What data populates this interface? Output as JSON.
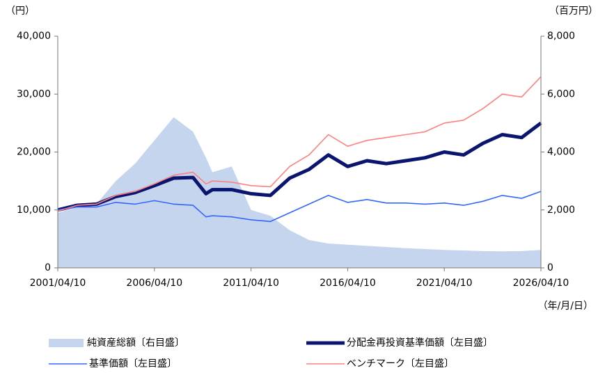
{
  "chart_data": {
    "type": "line",
    "y_unit": "（円）",
    "y2_unit": "（百万円）",
    "x_unit": "（年/月/日）",
    "x": [
      "2001/04/10",
      "2002/04/10",
      "2003/04/10",
      "2004/04/10",
      "2005/04/10",
      "2006/04/10",
      "2007/04/10",
      "2008/04/10",
      "2008/12/10",
      "2009/04/10",
      "2010/04/10",
      "2011/04/10",
      "2012/04/10",
      "2013/04/10",
      "2014/04/10",
      "2015/04/10",
      "2016/04/10",
      "2017/04/10",
      "2018/04/10",
      "2019/04/10",
      "2020/04/10",
      "2021/04/10",
      "2022/04/10",
      "2023/04/10",
      "2024/04/10",
      "2025/04/10",
      "2026/04/10"
    ],
    "series": [
      {
        "name": "純資産総額〔右目盛〕",
        "type": "area",
        "axis": "y2",
        "color": "#c5d5ee",
        "values": [
          1900,
          2100,
          2200,
          3000,
          3600,
          4400,
          5200,
          4700,
          3800,
          3300,
          3500,
          2000,
          1800,
          1300,
          960,
          840,
          800,
          760,
          720,
          680,
          650,
          620,
          600,
          580,
          570,
          580,
          620
        ]
      },
      {
        "name": "分配金再投資基準価額〔左目盛〕",
        "type": "line",
        "axis": "y",
        "color": "#0a1570",
        "values": [
          10000,
          10800,
          11000,
          12300,
          13000,
          14200,
          15500,
          15600,
          12800,
          13500,
          13500,
          12800,
          12500,
          15500,
          17000,
          19500,
          17500,
          18500,
          18000,
          18500,
          19000,
          20000,
          19500,
          21500,
          23000,
          22500,
          25000
        ]
      },
      {
        "name": "基準価額〔左目盛〕",
        "type": "line",
        "axis": "y",
        "color": "#3366ff",
        "values": [
          10000,
          10500,
          10500,
          11300,
          11000,
          11600,
          11000,
          10800,
          8800,
          9000,
          8800,
          8300,
          8000,
          9500,
          11000,
          12500,
          11300,
          11800,
          11200,
          11200,
          11000,
          11200,
          10800,
          11500,
          12500,
          12000,
          13200
        ]
      },
      {
        "name": "ベンチマーク〔左目盛〕",
        "type": "line",
        "axis": "y",
        "color": "#ff8080",
        "values": [
          9800,
          10800,
          11000,
          12500,
          13200,
          14500,
          16000,
          16500,
          14500,
          15000,
          14800,
          14200,
          14000,
          17500,
          19500,
          23000,
          21000,
          22000,
          22500,
          23000,
          23500,
          25000,
          25500,
          27500,
          30000,
          29500,
          33000
        ]
      }
    ],
    "xlim": [
      "2001/04/10",
      "2026/04/10"
    ],
    "xticks": [
      "2001/04/10",
      "2006/04/10",
      "2011/04/10",
      "2016/04/10",
      "2021/04/10",
      "2026/04/10"
    ],
    "ylim": [
      0,
      40000
    ],
    "yticks": [
      0,
      {
        "value": 10000,
        "label": "10,000"
      },
      {
        "value": 20000,
        "label": "20,000"
      },
      {
        "value": 30000,
        "label": "30,000"
      },
      {
        "value": 40000,
        "label": "40,000"
      }
    ],
    "y2lim": [
      0,
      8000
    ],
    "y2ticks": [
      0,
      {
        "value": 2000,
        "label": "2,000"
      },
      {
        "value": 4000,
        "label": "4,000"
      },
      {
        "value": 6000,
        "label": "6,000"
      },
      {
        "value": 8000,
        "label": "8,000"
      }
    ],
    "grid": false
  }
}
